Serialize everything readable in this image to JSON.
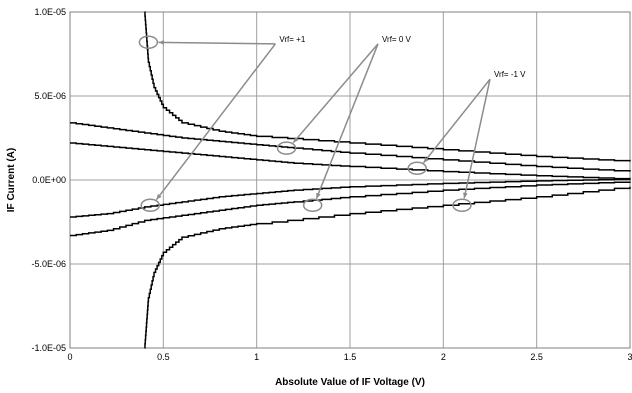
{
  "chart_data": {
    "type": "line",
    "title": "",
    "xlabel": "Absolute Value of IF Voltage (V)",
    "ylabel": "IF Current (A)",
    "xlim": [
      0,
      3
    ],
    "ylim": [
      -1e-05,
      1e-05
    ],
    "grid": true,
    "legend": "none",
    "x_ticks": [
      0,
      0.5,
      1,
      1.5,
      2,
      2.5,
      3
    ],
    "x_tick_labels": [
      "0",
      "0.5",
      "1",
      "1.5",
      "2",
      "2.5",
      "3"
    ],
    "y_ticks": [
      1e-05,
      5e-06,
      0,
      -5e-06,
      -1e-05
    ],
    "y_tick_labels": [
      "1.0E-05",
      "5.0E-06",
      "0.0E+00",
      "-5.0E-06",
      "-1.0E-05"
    ],
    "series": [
      {
        "x": [
          0.4,
          0.41,
          0.42,
          0.45,
          0.5,
          0.6,
          0.8,
          1.0,
          1.5,
          2.0,
          2.5,
          3.0
        ],
        "y": [
          1e-05,
          8.5e-06,
          7e-06,
          5.5e-06,
          4.3e-06,
          3.4e-06,
          2.9e-06,
          2.6e-06,
          2.2e-06,
          1.8e-06,
          1.4e-06,
          1.1e-06
        ]
      },
      {
        "x": [
          0.4,
          0.41,
          0.42,
          0.45,
          0.5,
          0.6,
          0.8,
          1.0,
          1.5,
          2.0,
          2.5,
          3.0
        ],
        "y": [
          -1e-05,
          -8.5e-06,
          -7e-06,
          -5.5e-06,
          -4.3e-06,
          -3.4e-06,
          -2.9e-06,
          -2.6e-06,
          -2e-06,
          -1.5e-06,
          -1e-06,
          -4e-07
        ]
      },
      {
        "x": [
          0,
          0.2,
          0.4,
          0.6,
          0.8,
          1.0,
          1.2,
          1.5,
          2.0,
          2.5,
          3.0
        ],
        "y": [
          3.4e-06,
          3.1e-06,
          2.8e-06,
          2.5e-06,
          2.3e-06,
          2.1e-06,
          1.9e-06,
          1.6e-06,
          1.2e-06,
          8e-07,
          5e-07
        ]
      },
      {
        "x": [
          0,
          0.2,
          0.4,
          0.6,
          0.8,
          1.0,
          1.2,
          1.5,
          2.0,
          2.5,
          3.0
        ],
        "y": [
          2.2e-06,
          2e-06,
          1.8e-06,
          1.6e-06,
          1.4e-06,
          1.2e-06,
          1e-06,
          8e-07,
          5e-07,
          2.5e-07,
          5e-08
        ]
      },
      {
        "x": [
          0,
          0.2,
          0.4,
          0.6,
          0.8,
          1.0,
          1.2,
          1.5,
          2.0,
          2.5,
          3.0
        ],
        "y": [
          -2.2e-06,
          -2e-06,
          -1.6e-06,
          -1.3e-06,
          -1e-06,
          -8e-07,
          -6e-07,
          -4e-07,
          -2e-07,
          -5e-08,
          5e-08
        ]
      },
      {
        "x": [
          0,
          0.2,
          0.4,
          0.6,
          0.8,
          1.0,
          1.2,
          1.5,
          2.0,
          2.5,
          3.0
        ],
        "y": [
          -3.3e-06,
          -3e-06,
          -2.4e-06,
          -2.1e-06,
          -1.8e-06,
          -1.5e-06,
          -1.3e-06,
          -1e-06,
          -6e-07,
          -3e-07,
          -1e-07
        ]
      }
    ],
    "annotations": [
      {
        "text": "Vrf= +1",
        "markers": [
          [
            0.42,
            8.2e-06
          ],
          [
            0.43,
            -1.5e-06
          ]
        ],
        "label_at": [
          1.1,
          8.1e-06
        ]
      },
      {
        "text": "Vrf= 0 V",
        "markers": [
          [
            1.16,
            1.9e-06
          ],
          [
            1.3,
            -1.5e-06
          ]
        ],
        "label_at": [
          1.65,
          8.1e-06
        ]
      },
      {
        "text": "Vrf= -1 V",
        "markers": [
          [
            1.86,
            7e-07
          ],
          [
            2.1,
            -1.5e-06
          ]
        ],
        "label_at": [
          2.25,
          6e-06
        ]
      }
    ],
    "colors": {
      "curve": "#000000",
      "grid": "#a0a0a0",
      "annotation": "#8c8c8c"
    }
  }
}
